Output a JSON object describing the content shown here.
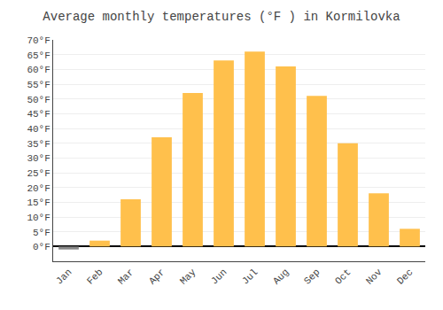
{
  "chart_data": {
    "type": "bar",
    "title": "Average monthly temperatures (°F ) in Kormilovka",
    "categories": [
      "Jan",
      "Feb",
      "Mar",
      "Apr",
      "May",
      "Jun",
      "Jul",
      "Aug",
      "Sep",
      "Oct",
      "Nov",
      "Dec"
    ],
    "values": [
      -1,
      2,
      16,
      37,
      52,
      63,
      66,
      61,
      51,
      35,
      18,
      6
    ],
    "colors": [
      "#888888",
      "#FFC04C",
      "#FFC04C",
      "#FFC04C",
      "#FFC04C",
      "#FFC04C",
      "#FFC04C",
      "#FFC04C",
      "#FFC04C",
      "#FFC04C",
      "#FFC04C",
      "#FFC04C"
    ],
    "ylim": [
      -5,
      70
    ],
    "yticks": [
      {
        "value": 0,
        "label": "0°F"
      },
      {
        "value": 5,
        "label": "5°F"
      },
      {
        "value": 10,
        "label": "10°F"
      },
      {
        "value": 15,
        "label": "15°F"
      },
      {
        "value": 20,
        "label": "20°F"
      },
      {
        "value": 25,
        "label": "25°F"
      },
      {
        "value": 30,
        "label": "30°F"
      },
      {
        "value": 35,
        "label": "35°F"
      },
      {
        "value": 40,
        "label": "40°F"
      },
      {
        "value": 45,
        "label": "45°F"
      },
      {
        "value": 50,
        "label": "50°F"
      },
      {
        "value": 55,
        "label": "55°F"
      },
      {
        "value": 60,
        "label": "60°F"
      },
      {
        "value": 65,
        "label": "65°F"
      },
      {
        "value": 70,
        "label": "70°F"
      }
    ],
    "grid": true
  }
}
